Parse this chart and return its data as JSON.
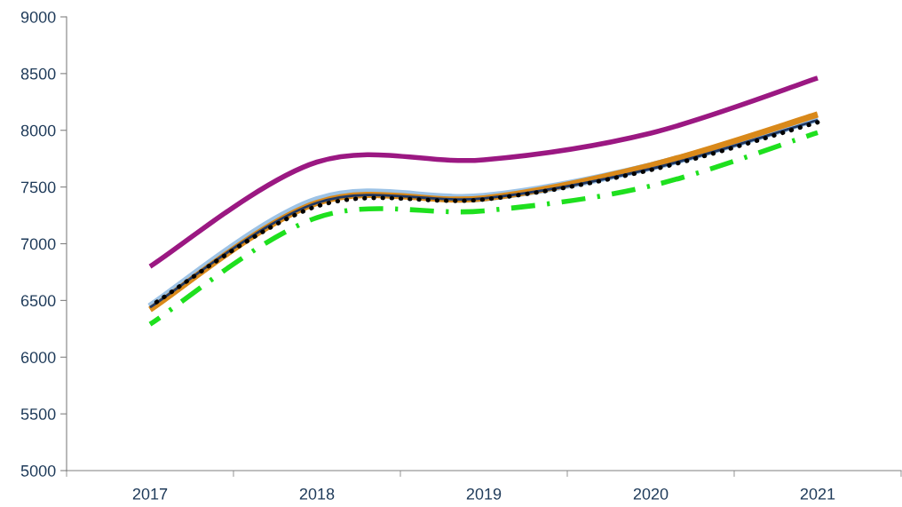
{
  "chart_data": {
    "type": "line",
    "categories": [
      "2017",
      "2018",
      "2019",
      "2020",
      "2021"
    ],
    "series": [
      {
        "color": "#9dc3e6",
        "values": [
          6440,
          7380,
          7410,
          7680,
          8110
        ],
        "line_style": "solid"
      },
      {
        "color": "#d9891a",
        "values": [
          6420,
          7360,
          7400,
          7690,
          8140
        ],
        "line_style": "solid"
      },
      {
        "color": "#1f3864",
        "values": [
          6440,
          7360,
          7400,
          7660,
          8090
        ],
        "line_style": "solid"
      },
      {
        "color": "#000000",
        "values": [
          6450,
          7330,
          7390,
          7650,
          8070
        ],
        "line_style": "dotted"
      },
      {
        "color": "#1ee01e",
        "values": [
          6290,
          7230,
          7290,
          7510,
          7980
        ],
        "line_style": "dashed"
      },
      {
        "color": "#9b1882",
        "values": [
          6800,
          7720,
          7740,
          7975,
          8460
        ],
        "line_style": "solid"
      }
    ],
    "ylim": [
      5000,
      9000
    ],
    "yticks": [
      5000,
      5500,
      6000,
      6500,
      7000,
      7500,
      8000,
      8500,
      9000
    ],
    "grid": false,
    "legend": false,
    "marker": "none"
  }
}
